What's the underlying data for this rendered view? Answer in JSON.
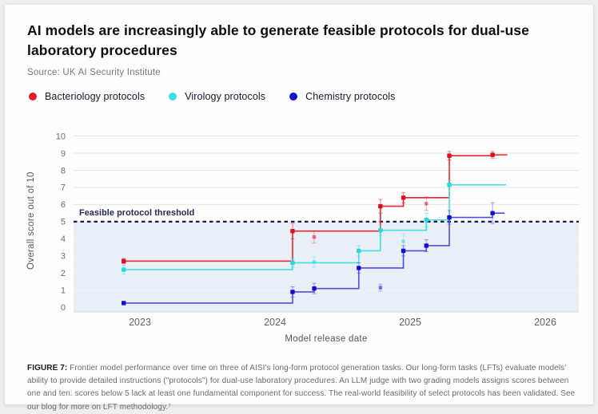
{
  "header": {
    "title_lines": [
      "AI models are increasingly able to generate feasible protocols for dual-use",
      "laboratory procedures"
    ],
    "source": "Source: UK AI Security Institute"
  },
  "legend": {
    "items": [
      {
        "label": "Bacteriology protocols",
        "color": "#e51c2c"
      },
      {
        "label": "Virology protocols",
        "color": "#3cdde0"
      },
      {
        "label": "Chemistry protocols",
        "color": "#1512d0"
      }
    ]
  },
  "chart_data": {
    "type": "line",
    "variant": "step-post-frontier",
    "title": "",
    "xlabel": "Model release date",
    "ylabel": "Overall score out of 10",
    "xlim": [
      2022.51,
      2026.25
    ],
    "ylim": [
      0,
      10
    ],
    "x_ticks": [
      "2023",
      "2024",
      "2025",
      "2026"
    ],
    "y_ticks": [
      0,
      1,
      2,
      3,
      4,
      5,
      6,
      7,
      8,
      9,
      10
    ],
    "grid": "horizontal",
    "legend_position": "top-left",
    "threshold": {
      "value": 5,
      "label": "Feasible protocol threshold",
      "line_color": "#1c1c52",
      "shade_below_color": "#e9eff7"
    },
    "series": [
      {
        "name": "Bacteriology protocols",
        "line_color": "#e9252f",
        "marker_color": "#d8101f",
        "points": [
          [
            2022.88,
            2.7,
            0.15
          ],
          [
            2024.13,
            4.45,
            0.45
          ],
          [
            2024.78,
            5.9,
            0.4
          ],
          [
            2024.95,
            6.4,
            0.3
          ],
          [
            2025.29,
            8.85,
            0.25
          ],
          [
            2025.61,
            8.9,
            0.2
          ]
        ],
        "line_end_x": 2025.72,
        "non_frontier_points": [
          [
            2024.29,
            4.1,
            0.35
          ],
          [
            2025.12,
            6.05,
            0.4
          ]
        ]
      },
      {
        "name": "Virology protocols",
        "line_color": "#43dfe1",
        "marker_color": "#2bd5da",
        "points": [
          [
            2022.88,
            2.2,
            0.25
          ],
          [
            2024.13,
            2.6,
            0.25
          ],
          [
            2024.62,
            3.3,
            0.3
          ],
          [
            2024.78,
            4.5,
            0.3
          ],
          [
            2025.12,
            5.1,
            0.4
          ],
          [
            2025.29,
            7.15,
            0.25
          ]
        ],
        "line_end_x": 2025.71,
        "non_frontier_points": [
          [
            2024.29,
            2.65,
            0.3
          ],
          [
            2024.95,
            3.85,
            0.4
          ]
        ]
      },
      {
        "name": "Chemistry protocols",
        "line_color": "#4f4de4",
        "marker_color": "#1410cf",
        "points": [
          [
            2022.88,
            0.25,
            0.1
          ],
          [
            2024.13,
            0.9,
            0.3
          ],
          [
            2024.29,
            1.1,
            0.3
          ],
          [
            2024.62,
            2.3,
            0.3
          ],
          [
            2024.95,
            3.3,
            0.3
          ],
          [
            2025.12,
            3.6,
            0.35
          ],
          [
            2025.29,
            5.25,
            0.4
          ],
          [
            2025.61,
            5.5,
            0.6
          ]
        ],
        "line_end_x": 2025.7,
        "non_frontier_points": [
          [
            2024.78,
            1.15,
            0.2
          ]
        ]
      }
    ]
  },
  "caption": {
    "label": "FIGURE 7:",
    "text": " Frontier model performance over time on three of AISI's long-form protocol generation tasks. Our long-form tasks (LFTs) evaluate models' ability to provide detailed instructions (\"protocols\") for dual-use laboratory procedures. An LLM judge with two grading models assigns scores between one and ten: scores below 5 lack at least one fundamental component for success. The real-world feasibility of select protocols has been validated.  See our blog for more on LFT methodology.⁷"
  }
}
